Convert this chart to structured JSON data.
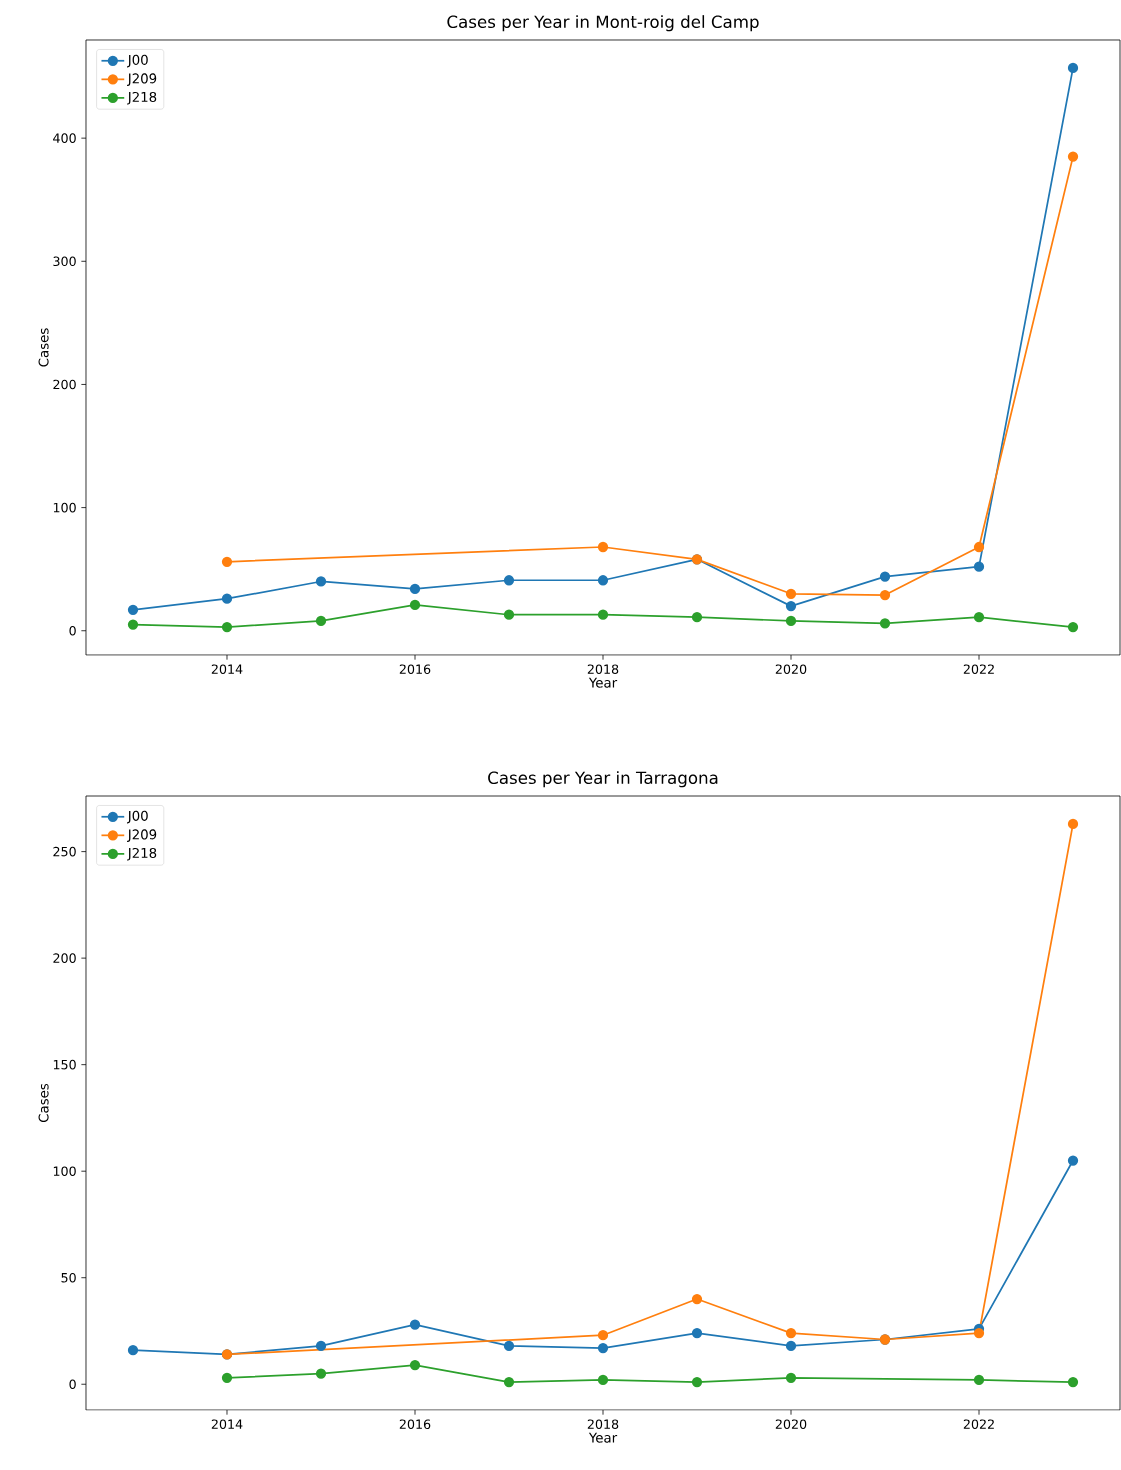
{
  "chart_data": [
    {
      "type": "line",
      "title": "Cases per Year in Mont-roig del Camp",
      "xlabel": "Year",
      "ylabel": "Cases",
      "xlim": [
        2012.5,
        2023.5
      ],
      "ylim": [
        -19.7,
        479.7
      ],
      "xticks": [
        2014,
        2016,
        2018,
        2020,
        2022
      ],
      "yticks": [
        0,
        100,
        200,
        300,
        400
      ],
      "legend": "top left",
      "marker": "circle",
      "line_style": "solid",
      "series": [
        {
          "name": "J00",
          "color": "#1f77b4",
          "x": [
            2013,
            2014,
            2015,
            2016,
            2017,
            2018,
            2019,
            2020,
            2021,
            2022,
            2023
          ],
          "values": [
            17,
            26,
            40,
            34,
            41,
            41,
            58,
            20,
            44,
            52,
            457
          ]
        },
        {
          "name": "J209",
          "color": "#ff7f0e",
          "x": [
            2014,
            2018,
            2019,
            2020,
            2021,
            2022,
            2023
          ],
          "values": [
            56,
            68,
            58,
            30,
            29,
            68,
            385
          ]
        },
        {
          "name": "J218",
          "color": "#2ca02c",
          "x": [
            2013,
            2014,
            2015,
            2016,
            2017,
            2018,
            2019,
            2020,
            2021,
            2022,
            2023
          ],
          "values": [
            5,
            3,
            8,
            21,
            13,
            13,
            11,
            8,
            6,
            11,
            3
          ]
        }
      ]
    },
    {
      "type": "line",
      "title": "Cases per Year in Tarragona",
      "xlabel": "Year",
      "ylabel": "Cases",
      "xlim": [
        2012.5,
        2023.5
      ],
      "ylim": [
        -12.1,
        276.1
      ],
      "xticks": [
        2014,
        2016,
        2018,
        2020,
        2022
      ],
      "yticks": [
        0,
        50,
        100,
        150,
        200,
        250
      ],
      "legend": "top left",
      "marker": "circle",
      "line_style": "solid",
      "series": [
        {
          "name": "J00",
          "color": "#1f77b4",
          "x": [
            2013,
            2014,
            2015,
            2016,
            2017,
            2018,
            2019,
            2020,
            2021,
            2022,
            2023
          ],
          "values": [
            16,
            14,
            18,
            28,
            18,
            17,
            24,
            18,
            21,
            26,
            105
          ]
        },
        {
          "name": "J209",
          "color": "#ff7f0e",
          "x": [
            2014,
            2018,
            2019,
            2020,
            2021,
            2022,
            2023
          ],
          "values": [
            14,
            23,
            40,
            24,
            21,
            24,
            263
          ]
        },
        {
          "name": "J218",
          "color": "#2ca02c",
          "x": [
            2014,
            2015,
            2016,
            2017,
            2018,
            2019,
            2020,
            2022,
            2023
          ],
          "values": [
            3,
            5,
            9,
            1,
            2,
            1,
            3,
            2,
            1
          ]
        }
      ]
    }
  ]
}
